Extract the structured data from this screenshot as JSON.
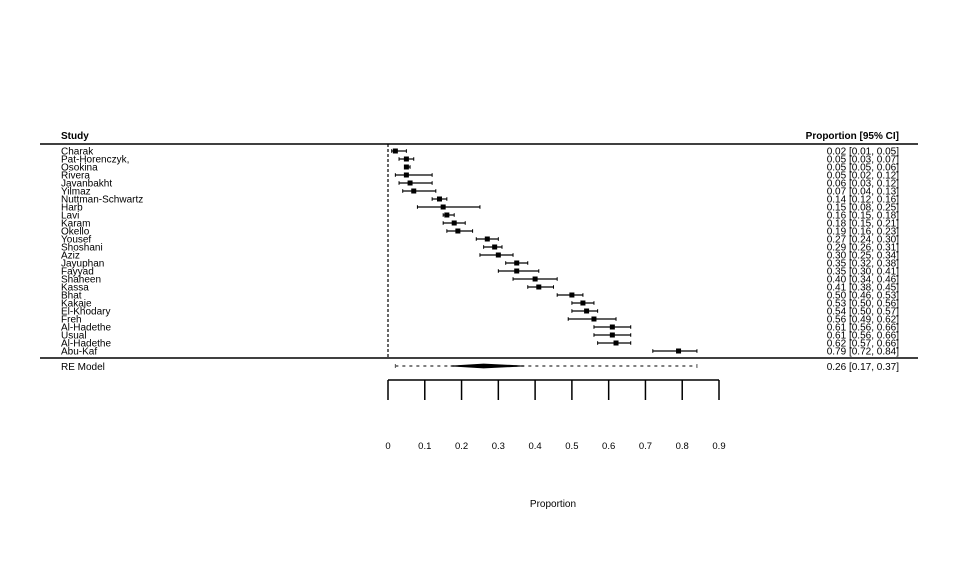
{
  "chart_data": {
    "type": "forest",
    "title": "",
    "xlabel": "Proportion",
    "ylabel": "",
    "header_left": "Study",
    "header_right": "Proportion [95% CI]",
    "xlim": [
      0,
      0.9
    ],
    "xticks": [
      "0",
      "0.1",
      "0.2",
      "0.3",
      "0.4",
      "0.5",
      "0.6",
      "0.7",
      "0.8",
      "0.9"
    ],
    "reference_line": 0,
    "studies": [
      {
        "name": "Charak",
        "est": 0.02,
        "lo": 0.01,
        "hi": 0.05,
        "ci": "0.02 [0.01, 0.05]"
      },
      {
        "name": "Pat-Horenczyk,",
        "est": 0.05,
        "lo": 0.03,
        "hi": 0.07,
        "ci": "0.05 [0.03, 0.07]"
      },
      {
        "name": "Osokina",
        "est": 0.05,
        "lo": 0.05,
        "hi": 0.06,
        "ci": "0.05 [0.05, 0.06]"
      },
      {
        "name": "Rivera",
        "est": 0.05,
        "lo": 0.02,
        "hi": 0.12,
        "ci": "0.05 [0.02, 0.12]"
      },
      {
        "name": "Javanbakht",
        "est": 0.06,
        "lo": 0.03,
        "hi": 0.12,
        "ci": "0.06 [0.03, 0.12]"
      },
      {
        "name": "Yilmaz",
        "est": 0.07,
        "lo": 0.04,
        "hi": 0.13,
        "ci": "0.07 [0.04, 0.13]"
      },
      {
        "name": "Nuttman-Schwartz",
        "est": 0.14,
        "lo": 0.12,
        "hi": 0.16,
        "ci": "0.14 [0.12, 0.16]"
      },
      {
        "name": "Harb",
        "est": 0.15,
        "lo": 0.08,
        "hi": 0.25,
        "ci": "0.15 [0.08, 0.25]"
      },
      {
        "name": "Lavi",
        "est": 0.16,
        "lo": 0.15,
        "hi": 0.18,
        "ci": "0.16 [0.15, 0.18]"
      },
      {
        "name": "Karam",
        "est": 0.18,
        "lo": 0.15,
        "hi": 0.21,
        "ci": "0.18 [0.15, 0.21]"
      },
      {
        "name": "Okello",
        "est": 0.19,
        "lo": 0.16,
        "hi": 0.23,
        "ci": "0.19 [0.16, 0.23]"
      },
      {
        "name": "Yousef",
        "est": 0.27,
        "lo": 0.24,
        "hi": 0.3,
        "ci": "0.27 [0.24, 0.30]"
      },
      {
        "name": "Shoshani",
        "est": 0.29,
        "lo": 0.26,
        "hi": 0.31,
        "ci": "0.29 [0.26, 0.31]"
      },
      {
        "name": "Aziz",
        "est": 0.3,
        "lo": 0.25,
        "hi": 0.34,
        "ci": "0.30 [0.25, 0.34]"
      },
      {
        "name": "Jayuphan",
        "est": 0.35,
        "lo": 0.32,
        "hi": 0.38,
        "ci": "0.35 [0.32, 0.38]"
      },
      {
        "name": "Fayyad",
        "est": 0.35,
        "lo": 0.3,
        "hi": 0.41,
        "ci": "0.35 [0.30, 0.41]"
      },
      {
        "name": "Shaheen",
        "est": 0.4,
        "lo": 0.34,
        "hi": 0.46,
        "ci": "0.40 [0.34, 0.46]"
      },
      {
        "name": "Kassa",
        "est": 0.41,
        "lo": 0.38,
        "hi": 0.45,
        "ci": "0.41 [0.38, 0.45]"
      },
      {
        "name": "Bhat",
        "est": 0.5,
        "lo": 0.46,
        "hi": 0.53,
        "ci": "0.50 [0.46, 0.53]"
      },
      {
        "name": "Kakaje",
        "est": 0.53,
        "lo": 0.5,
        "hi": 0.56,
        "ci": "0.53 [0.50, 0.56]"
      },
      {
        "name": "El-Khodary",
        "est": 0.54,
        "lo": 0.5,
        "hi": 0.57,
        "ci": "0.54 [0.50, 0.57]"
      },
      {
        "name": "Freh",
        "est": 0.56,
        "lo": 0.49,
        "hi": 0.62,
        "ci": "0.56 [0.49, 0.62]"
      },
      {
        "name": "Al-Hadethe",
        "est": 0.61,
        "lo": 0.56,
        "hi": 0.66,
        "ci": "0.61 [0.56, 0.66]"
      },
      {
        "name": "Usual",
        "est": 0.61,
        "lo": 0.56,
        "hi": 0.66,
        "ci": "0.61 [0.56, 0.66]"
      },
      {
        "name": "Al-Hadethe",
        "est": 0.62,
        "lo": 0.57,
        "hi": 0.66,
        "ci": "0.62 [0.57, 0.66]"
      },
      {
        "name": "Abu-Kaf",
        "est": 0.79,
        "lo": 0.72,
        "hi": 0.84,
        "ci": "0.79 [0.72, 0.84]"
      }
    ],
    "summary": {
      "name": "RE Model",
      "est": 0.26,
      "lo": 0.17,
      "hi": 0.37,
      "pi_lo": 0.02,
      "pi_hi": 0.84,
      "ci": "0.26 [0.17, 0.37]"
    }
  }
}
